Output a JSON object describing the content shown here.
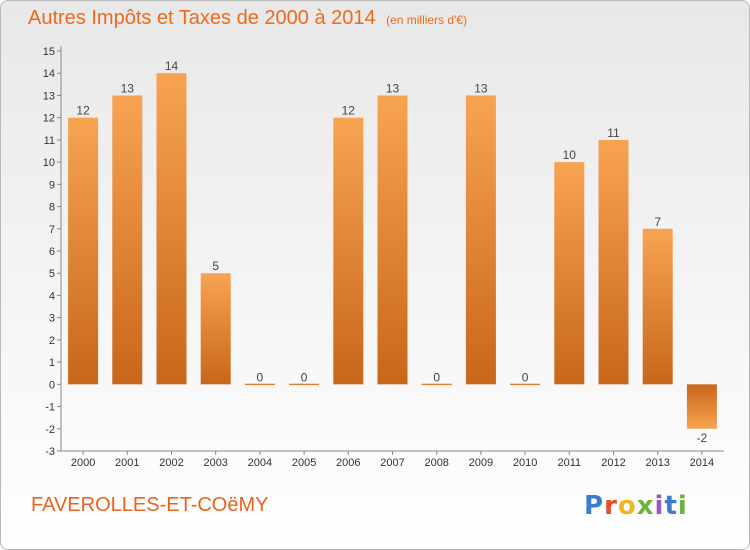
{
  "chart_data": {
    "type": "bar",
    "title": "Autres Impôts et Taxes de 2000 à 2014",
    "subtitle": "(en milliers d'€)",
    "categories": [
      "2000",
      "2001",
      "2002",
      "2003",
      "2004",
      "2005",
      "2006",
      "2007",
      "2008",
      "2009",
      "2010",
      "2011",
      "2012",
      "2013",
      "2014"
    ],
    "values": [
      12,
      13,
      14,
      5,
      0,
      0,
      12,
      13,
      0,
      13,
      0,
      10,
      11,
      7,
      -2
    ],
    "ylim": [
      -3,
      15
    ],
    "yticks": [
      -3,
      -2,
      -1,
      0,
      1,
      2,
      3,
      4,
      5,
      6,
      7,
      8,
      9,
      10,
      11,
      12,
      13,
      14,
      15
    ],
    "grid": false,
    "bar_color": "#f0902e",
    "bar_color_dark": "#c8661a"
  },
  "commune": "FAVEROLLES-ET-COëMY",
  "logo": {
    "letters": [
      "P",
      "r",
      "o",
      "x",
      "i",
      "t",
      "i"
    ]
  },
  "colors": {
    "title": "#ee6a1b",
    "accent": "#f0902e"
  }
}
